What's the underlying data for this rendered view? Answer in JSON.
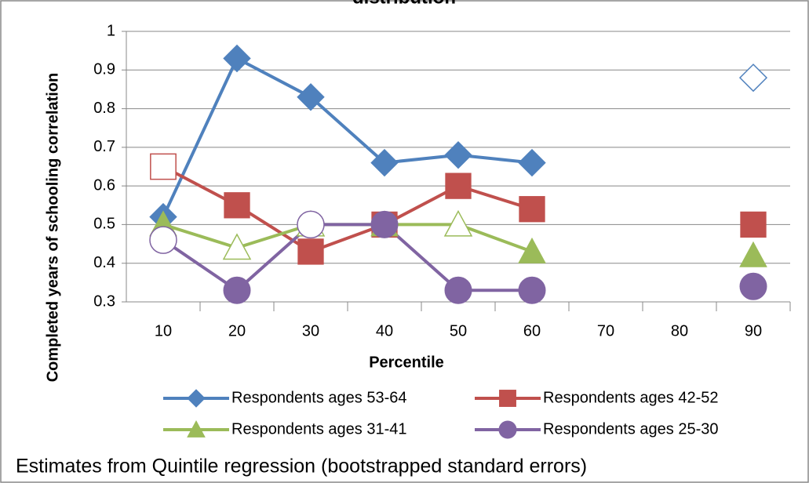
{
  "chart_data": {
    "type": "line",
    "title": "distribution",
    "x_label": "Percentile",
    "y_label": "Completed years of schooling correlation",
    "note": "Estimates from Quintile regression (bootstrapped standard errors)",
    "categories": [
      "10",
      "20",
      "30",
      "40",
      "50",
      "60",
      "70",
      "80",
      "90"
    ],
    "ylim": [
      0.3,
      1
    ],
    "yticks": [
      0.3,
      0.4,
      0.5,
      0.6,
      0.7,
      0.8,
      0.9,
      1
    ],
    "grid": true,
    "legend": "bottom",
    "series": [
      {
        "name": "Respondents ages 53-64",
        "color": "#4f81bd",
        "marker": "diamond",
        "values": [
          0.52,
          0.93,
          0.83,
          0.66,
          0.68,
          0.66,
          null,
          null,
          0.88
        ],
        "hollow": [
          false,
          false,
          false,
          false,
          false,
          false,
          false,
          false,
          true
        ]
      },
      {
        "name": "Respondents ages 42-52",
        "color": "#c0504d",
        "marker": "square",
        "values": [
          0.65,
          0.55,
          0.43,
          0.5,
          0.6,
          0.54,
          null,
          null,
          0.5
        ],
        "hollow": [
          true,
          false,
          false,
          false,
          false,
          false,
          false,
          false,
          false
        ]
      },
      {
        "name": "Respondents ages 31-41",
        "color": "#9bbb59",
        "marker": "triangle",
        "values": [
          0.5,
          0.44,
          0.5,
          0.5,
          0.5,
          0.43,
          null,
          null,
          0.42
        ],
        "hollow": [
          false,
          true,
          true,
          false,
          true,
          false,
          false,
          false,
          false
        ]
      },
      {
        "name": "Respondents ages 25-30",
        "color": "#8064a2",
        "marker": "circle",
        "values": [
          0.46,
          0.33,
          0.5,
          0.5,
          0.33,
          0.33,
          null,
          null,
          0.34
        ],
        "hollow": [
          true,
          false,
          true,
          false,
          false,
          false,
          false,
          false,
          false
        ]
      }
    ]
  }
}
